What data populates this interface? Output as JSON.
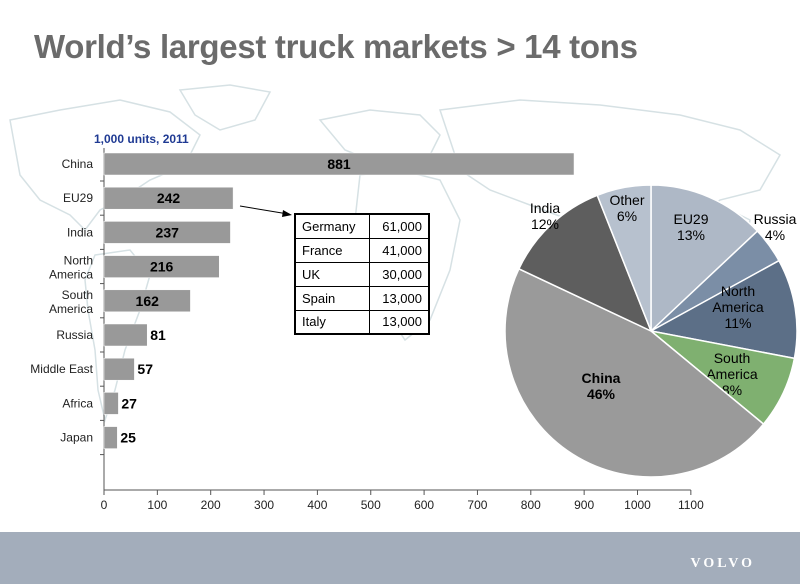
{
  "page": {
    "title": "World’s largest truck markets > 14 tons",
    "logo_text": "VOLVO"
  },
  "table": {
    "rows": [
      {
        "country": "Germany",
        "value": "61,000"
      },
      {
        "country": "France",
        "value": "41,000"
      },
      {
        "country": "UK",
        "value": "30,000"
      },
      {
        "country": "Spain",
        "value": "13,000"
      },
      {
        "country": "Italy",
        "value": "13,000"
      }
    ]
  },
  "chart_data": [
    {
      "type": "bar",
      "orientation": "horizontal",
      "units_label": "1,000 units, 2011",
      "categories": [
        "China",
        "EU29",
        "India",
        "North America",
        "South America",
        "Russia",
        "Middle East",
        "Africa",
        "Japan"
      ],
      "values": [
        881,
        242,
        237,
        216,
        162,
        81,
        57,
        27,
        25
      ],
      "xlim": [
        0,
        1100
      ],
      "xticks": [
        0,
        100,
        200,
        300,
        400,
        500,
        600,
        700,
        800,
        900,
        1000,
        1100
      ],
      "bar_color": "#999999",
      "grid": false
    },
    {
      "type": "pie",
      "slices": [
        {
          "label": "EU29",
          "percent": 13,
          "color": "#aeb8c6"
        },
        {
          "label": "Russia",
          "percent": 4,
          "color": "#7b8ea6"
        },
        {
          "label": "North America",
          "percent": 11,
          "color": "#5c6f87"
        },
        {
          "label": "South America",
          "percent": 8,
          "color": "#7fb070"
        },
        {
          "label": "China",
          "percent": 46,
          "color": "#9a9a9a"
        },
        {
          "label": "India",
          "percent": 12,
          "color": "#5e5e5e"
        },
        {
          "label": "Other",
          "percent": 6,
          "color": "#b7c1ce"
        }
      ]
    }
  ],
  "colors": {
    "title": "#6b6b6b",
    "units_label": "#1f3a93",
    "footer": "#a3adbb",
    "map_outline": "#d6e1e4"
  }
}
